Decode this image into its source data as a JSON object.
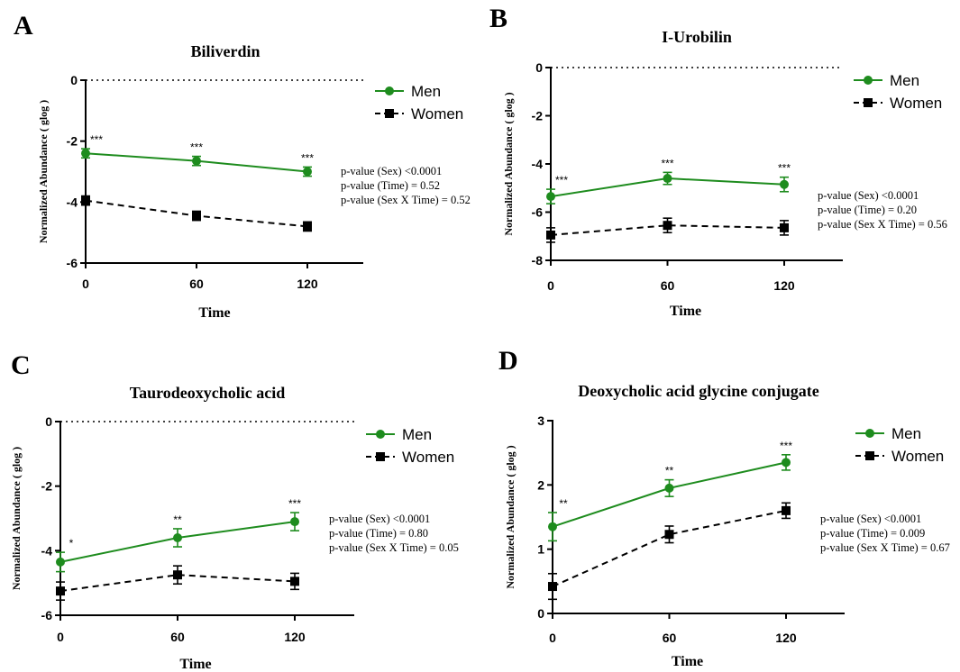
{
  "colors": {
    "men": "#1e8c1e",
    "women": "#000000",
    "axis": "#000000"
  },
  "legend_labels": {
    "men": "Men",
    "women": "Women"
  },
  "chart_data": [
    {
      "panel": "A",
      "type": "line",
      "title": "Biliverdin",
      "xlabel": "Time",
      "ylabel": "Normalized Abundance ( glog )",
      "x": [
        0,
        60,
        120
      ],
      "xlim": [
        0,
        150
      ],
      "xticks": [
        "0",
        "60",
        "120"
      ],
      "ylim": [
        -6,
        0
      ],
      "yticks": [
        0,
        -2,
        -4,
        -6
      ],
      "ytick_labels": [
        "0",
        "-2",
        "-4",
        "-6"
      ],
      "series": [
        {
          "name": "Men",
          "values": [
            -2.4,
            -2.65,
            -3.0
          ],
          "errors": [
            0.15,
            0.15,
            0.15
          ],
          "significance": [
            "***",
            "***",
            "***"
          ]
        },
        {
          "name": "Women",
          "values": [
            -3.95,
            -4.45,
            -4.8
          ],
          "errors": [
            0.15,
            0.15,
            0.15
          ]
        }
      ],
      "stats": [
        "p-value (Sex) <0.0001",
        "p-value (Time) = 0.52",
        "p-value (Sex X Time) = 0.52"
      ],
      "reference_line": 0
    },
    {
      "panel": "B",
      "type": "line",
      "title": "I-Urobilin",
      "xlabel": "Time",
      "ylabel": "Normalized Abundance ( glog )",
      "x": [
        0,
        60,
        120
      ],
      "xlim": [
        0,
        150
      ],
      "xticks": [
        "0",
        "60",
        "120"
      ],
      "ylim": [
        -8,
        0
      ],
      "yticks": [
        0,
        -2,
        -4,
        -6,
        -8
      ],
      "ytick_labels": [
        "0",
        "-2",
        "-4",
        "-6",
        "-8"
      ],
      "series": [
        {
          "name": "Men",
          "values": [
            -5.35,
            -4.6,
            -4.85
          ],
          "errors": [
            0.3,
            0.25,
            0.3
          ],
          "significance": [
            "***",
            "***",
            "***"
          ]
        },
        {
          "name": "Women",
          "values": [
            -6.95,
            -6.55,
            -6.65
          ],
          "errors": [
            0.3,
            0.3,
            0.3
          ]
        }
      ],
      "stats": [
        "p-value (Sex) <0.0001",
        "p-value (Time) = 0.20",
        "p-value (Sex X Time) = 0.56"
      ],
      "reference_line": 0
    },
    {
      "panel": "C",
      "type": "line",
      "title": "Taurodeoxycholic acid",
      "xlabel": "Time",
      "ylabel": "Normalized Abundance ( glog )",
      "x": [
        0,
        60,
        120
      ],
      "xlim": [
        0,
        150
      ],
      "xticks": [
        "0",
        "60",
        "120"
      ],
      "ylim": [
        -6,
        0
      ],
      "yticks": [
        0,
        -2,
        -4,
        -6
      ],
      "ytick_labels": [
        "0",
        "-2",
        "-4",
        "-6"
      ],
      "series": [
        {
          "name": "Men",
          "values": [
            -4.35,
            -3.6,
            -3.1
          ],
          "errors": [
            0.3,
            0.28,
            0.28
          ],
          "significance": [
            "*",
            "**",
            "***"
          ]
        },
        {
          "name": "Women",
          "values": [
            -5.25,
            -4.75,
            -4.95
          ],
          "errors": [
            0.28,
            0.28,
            0.25
          ]
        }
      ],
      "stats": [
        "p-value (Sex) <0.0001",
        "p-value (Time) = 0.80",
        "p-value (Sex X Time) = 0.05"
      ],
      "reference_line": 0
    },
    {
      "panel": "D",
      "type": "line",
      "title": "Deoxycholic acid glycine conjugate",
      "xlabel": "Time",
      "ylabel": "Normalized Abundance ( glog )",
      "x": [
        0,
        60,
        120
      ],
      "xlim": [
        0,
        150
      ],
      "xticks": [
        "0",
        "60",
        "120"
      ],
      "ylim": [
        0,
        3
      ],
      "yticks": [
        0,
        1,
        2,
        3
      ],
      "ytick_labels": [
        "0",
        "1",
        "2",
        "3"
      ],
      "series": [
        {
          "name": "Men",
          "values": [
            1.35,
            1.95,
            2.35
          ],
          "errors": [
            0.22,
            0.13,
            0.12
          ],
          "significance": [
            "**",
            "**",
            "***"
          ]
        },
        {
          "name": "Women",
          "values": [
            0.42,
            1.23,
            1.6
          ],
          "errors": [
            0.2,
            0.13,
            0.12
          ]
        }
      ],
      "stats": [
        "p-value (Sex) <0.0001",
        "p-value (Time) = 0.009",
        "p-value (Sex X Time) = 0.67"
      ],
      "reference_line": null
    }
  ]
}
